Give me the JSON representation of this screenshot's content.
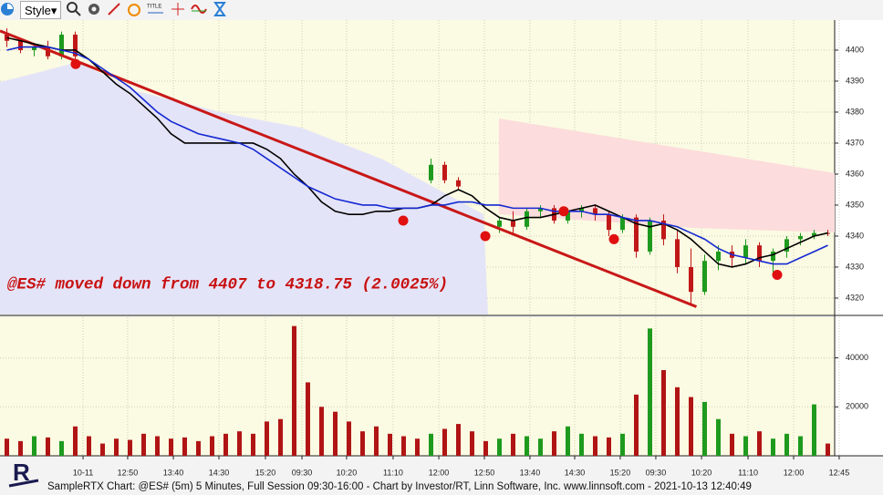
{
  "toolbar": {
    "style_label": "Style",
    "title_icon": "TITLE"
  },
  "chart_data": [
    {
      "type": "candlestick",
      "annotation": "@ES# moved down from 4407 to 4318.75 (2.0025%)",
      "xlim": [
        0,
        61
      ],
      "ylim": [
        4314.4,
        4409.7
      ],
      "yticks": [
        4320,
        4330,
        4340,
        4350,
        4360,
        4370,
        4380,
        4390,
        4400
      ],
      "up_color": "#1e9a1e",
      "down_color": "#c01818",
      "open": [
        4405,
        4403,
        4400,
        4401,
        4398,
        4405,
        null,
        null,
        null,
        null,
        null,
        null,
        null,
        null,
        null,
        null,
        null,
        null,
        null,
        null,
        null,
        null,
        null,
        null,
        null,
        null,
        null,
        null,
        null,
        null,
        null,
        4358,
        4363,
        4358,
        null,
        null,
        4343,
        4345,
        4343,
        4348,
        4349,
        4345,
        4348,
        4349,
        4347,
        4342,
        4346,
        4335,
        4345,
        4339,
        4330,
        4322,
        4332,
        4335,
        4333,
        4337,
        4332,
        4335,
        4339,
        4340,
        4341
      ],
      "high": [
        4407,
        4404,
        4402,
        4403,
        4406,
        4406,
        null,
        null,
        null,
        null,
        null,
        null,
        null,
        null,
        null,
        null,
        null,
        null,
        null,
        null,
        null,
        null,
        null,
        null,
        null,
        null,
        null,
        null,
        null,
        null,
        null,
        4365,
        4364,
        4359,
        null,
        null,
        4346,
        4348,
        4349,
        4350,
        4350,
        4349,
        4350,
        4350,
        4348,
        4347,
        4347,
        4346,
        4347,
        4342,
        4336,
        4334,
        4337,
        4337,
        4339,
        4338,
        4336,
        4340,
        4341,
        4342,
        4342
      ],
      "low": [
        4401,
        4399,
        4398,
        4397,
        4397,
        4397,
        null,
        null,
        null,
        null,
        null,
        null,
        null,
        null,
        null,
        null,
        null,
        null,
        null,
        null,
        null,
        null,
        null,
        null,
        null,
        null,
        null,
        null,
        null,
        null,
        null,
        4357,
        4357,
        4355,
        null,
        null,
        4341,
        4341,
        4342,
        4346,
        4344,
        4344,
        4346,
        4345,
        4340,
        4341,
        4333,
        4334,
        4337,
        4328,
        4318,
        4321,
        4329,
        4330,
        4331,
        4330,
        4328,
        4333,
        4337,
        4339,
        4340
      ],
      "close": [
        4403,
        4400,
        4401,
        4398,
        4405,
        4398,
        null,
        null,
        null,
        null,
        null,
        null,
        null,
        null,
        null,
        null,
        null,
        null,
        null,
        null,
        null,
        null,
        null,
        null,
        null,
        null,
        null,
        null,
        null,
        null,
        null,
        4363,
        4358,
        4356,
        null,
        null,
        4345,
        4343,
        4348,
        4349,
        4345,
        4348,
        4349,
        4347,
        4342,
        4346,
        4335,
        4345,
        4339,
        4330,
        4322,
        4332,
        4335,
        4333,
        4337,
        4332,
        4335,
        4339,
        4340,
        4341,
        4341
      ],
      "series": [
        {
          "color": "#000000",
          "values": [
            4404,
            4403,
            4402,
            4401,
            4400,
            4400,
            4397,
            4393,
            4389,
            4386,
            4382,
            4378,
            4373,
            4370,
            4370,
            4370,
            4370,
            4370,
            4370,
            4368,
            4365,
            4360,
            4356,
            4351,
            4348,
            4347,
            4347,
            4348,
            4348,
            4349,
            4349,
            4350,
            4353,
            4355,
            4353,
            4349,
            4346,
            4345,
            4346,
            4346,
            4347,
            4348,
            4349,
            4350,
            4348,
            4346,
            4344,
            4343,
            4344,
            4342,
            4339,
            4335,
            4331,
            4330,
            4331,
            4333,
            4334,
            4336,
            4338,
            4340,
            4341
          ]
        },
        {
          "color": "#1428d2",
          "values": [
            4400,
            4401,
            4401,
            4401,
            4400,
            4399,
            4397,
            4394,
            4391,
            4388,
            4384,
            4380,
            4377,
            4375,
            4373,
            4372,
            4371,
            4370,
            4368,
            4365,
            4362,
            4359,
            4356,
            4354,
            4352,
            4351,
            4350,
            4350,
            4349,
            4349,
            4349,
            4350,
            4350,
            4351,
            4351,
            4350,
            4350,
            4349,
            4349,
            4349,
            4348,
            4348,
            4348,
            4347,
            4347,
            4346,
            4345,
            4345,
            4344,
            4343,
            4341,
            4339,
            4336,
            4334,
            4333,
            4332,
            4331,
            4331,
            4333,
            4335,
            4337
          ]
        }
      ],
      "signals": {
        "color": "#e01010",
        "x": [
          5.53,
          29.47,
          35.47,
          41.2,
          44.87,
          56.8
        ],
        "values": [
          4395.5,
          4345,
          4340,
          4348,
          4339,
          4327.5
        ]
      },
      "trendline": {
        "color": "#c81818",
        "x": [
          0,
          50.9
        ],
        "values": [
          4406.2,
          4317.2
        ]
      }
    },
    {
      "type": "bar",
      "xlim": [
        0,
        61
      ],
      "ylim": [
        0,
        56600
      ],
      "yticks": [
        20000,
        40000
      ],
      "xticks": [
        {
          "value": 6.07,
          "label": "10-11"
        },
        {
          "value": 9.33,
          "label": "12:50"
        },
        {
          "value": 12.67,
          "label": "13:40"
        },
        {
          "value": 16,
          "label": "14:30"
        },
        {
          "value": 19.4,
          "label": "15:20"
        },
        {
          "value": 22.07,
          "label": "09:30"
        },
        {
          "value": 25.33,
          "label": "10:20"
        },
        {
          "value": 28.73,
          "label": "11:10"
        },
        {
          "value": 32.07,
          "label": "12:00"
        },
        {
          "value": 35.4,
          "label": "12:50"
        },
        {
          "value": 38.73,
          "label": "13:40"
        },
        {
          "value": 42,
          "label": "14:30"
        },
        {
          "value": 45.33,
          "label": "15:20"
        },
        {
          "value": 47.93,
          "label": "09:30"
        },
        {
          "value": 51.27,
          "label": "10:20"
        },
        {
          "value": 54.67,
          "label": "11:10"
        },
        {
          "value": 58,
          "label": "12:00"
        },
        {
          "value": 61.33,
          "label": "12:45"
        }
      ],
      "values": [
        7000,
        6000,
        8000,
        7500,
        6000,
        12000,
        8000,
        5000,
        7000,
        6500,
        9000,
        8000,
        7000,
        7500,
        6000,
        8000,
        9000,
        10000,
        9000,
        14000,
        15000,
        53000,
        30000,
        20000,
        18000,
        14000,
        10000,
        12000,
        9000,
        8000,
        7000,
        9000,
        11000,
        13000,
        10000,
        6000,
        7000,
        9000,
        8000,
        7000,
        10000,
        12000,
        9000,
        8000,
        7500,
        9000,
        25000,
        52000,
        35000,
        28000,
        24000,
        22000,
        15000,
        9000,
        8000,
        10000,
        7000,
        9000,
        8000,
        21000,
        5000
      ],
      "up_color": "#1e9a1e",
      "down_color": "#b01414"
    }
  ],
  "footer": "SampleRTX Chart: @ES# (5m) 5 Minutes, Full Session 09:30-16:00 - Chart by Investor/RT, Linn Software, Inc. www.linnsoft.com - 2021-10-13 12:40:49"
}
